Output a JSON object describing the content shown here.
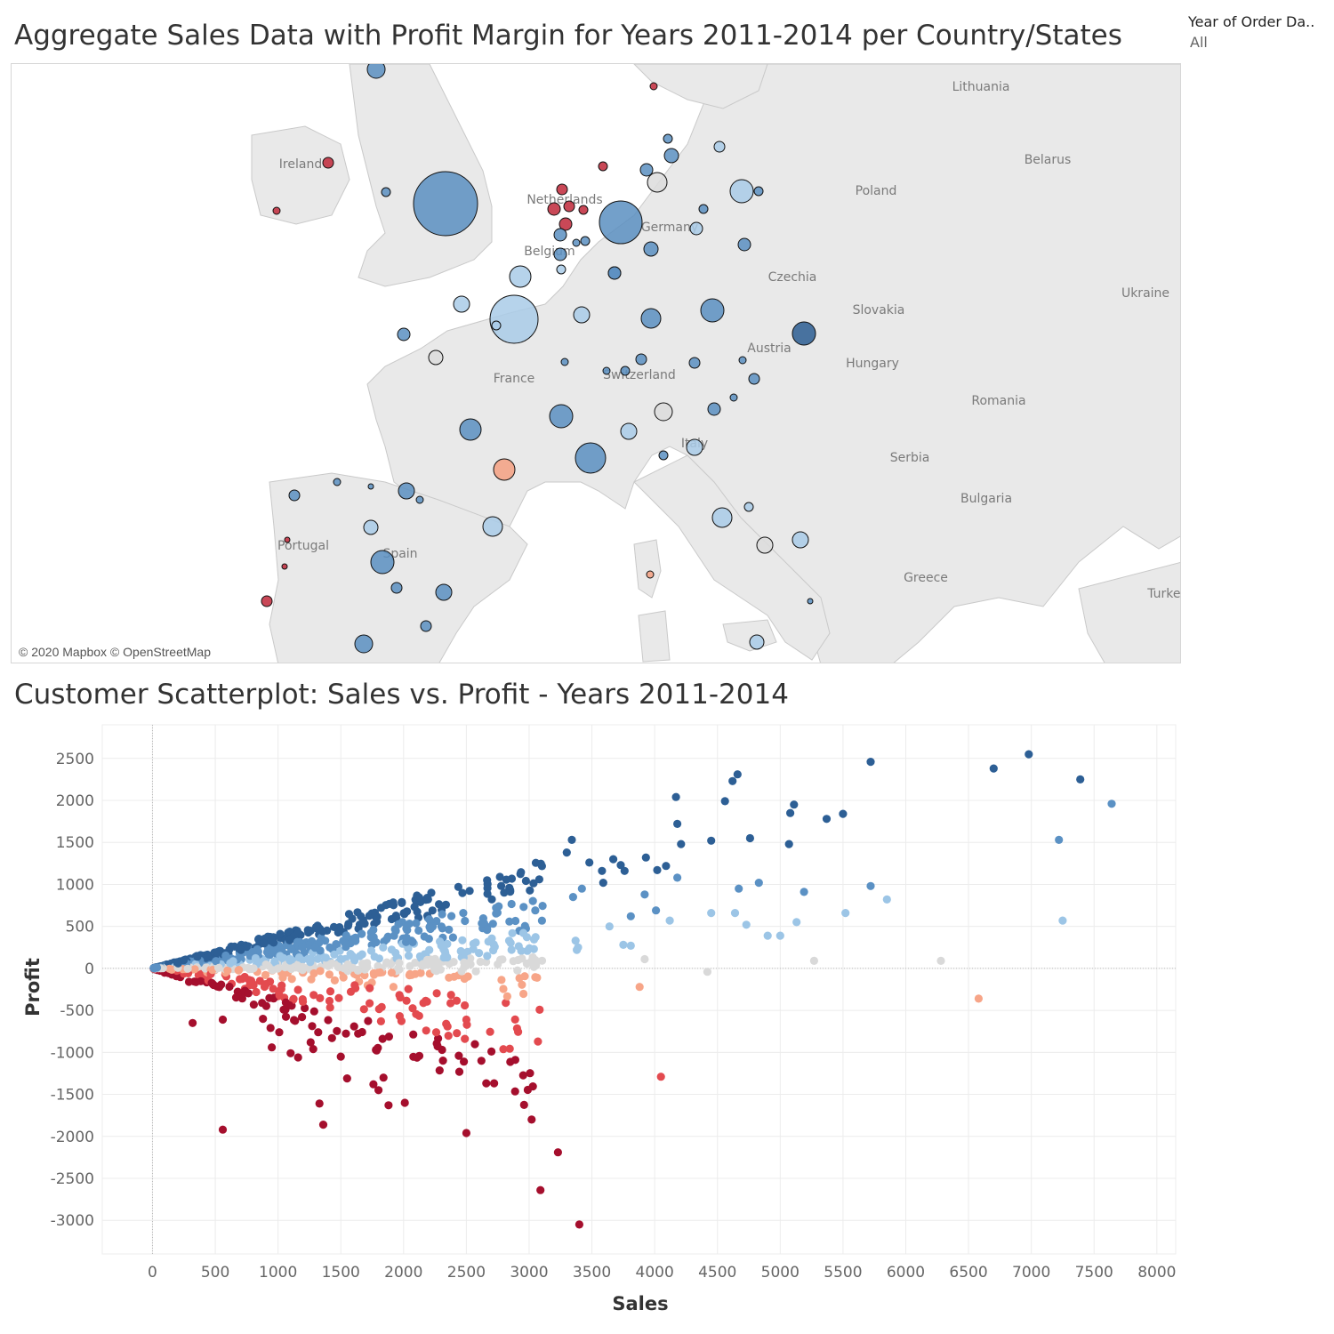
{
  "map": {
    "title": "Aggregate Sales Data with Profit Margin for Years 2011-2014 per Country/States",
    "attribution": "© 2020 Mapbox © OpenStreetMap",
    "labels": [
      "Lithuania",
      "Belarus",
      "Ireland",
      "Poland",
      "Netherlands",
      "Germany",
      "Belgium",
      "Ukraine",
      "Czechia",
      "Slovakia",
      "Austria",
      "Hungary",
      "France",
      "Switzerland",
      "Romania",
      "Italy",
      "Serbia",
      "Bulgaria",
      "Portugal",
      "Spain",
      "Greece",
      "Turkey"
    ],
    "bubble_colors": {
      "strong_positive": "#2b5d92",
      "positive": "#5b8fc1",
      "light_positive": "#a9cbe8",
      "neutral": "#dcdcdc",
      "light_negative": "#f4a081",
      "negative": "#c0283a"
    }
  },
  "filter": {
    "label": "Year of Order Da..",
    "value": "All"
  },
  "chart_data": {
    "type": "scatter",
    "title": "Customer Scatterplot: Sales vs. Profit - Years 2011-2014",
    "xlabel": "Sales",
    "ylabel": "Profit",
    "xlim": [
      -400,
      8150
    ],
    "ylim": [
      -3400,
      2900
    ],
    "x_ticks": [
      0,
      500,
      1000,
      1500,
      2000,
      2500,
      3000,
      3500,
      4000,
      4500,
      5000,
      5500,
      6000,
      6500,
      7000,
      7500,
      8000
    ],
    "y_ticks": [
      2500,
      2000,
      1500,
      1000,
      500,
      0,
      -500,
      -1000,
      -1500,
      -2000,
      -2500,
      -3000
    ],
    "grid": true,
    "color_scale": {
      "most_negative": "#a50f2d",
      "negative": "#e34a4f",
      "light_negative": "#f7a588",
      "neutral": "#d9d9d9",
      "light_positive": "#9cc5e6",
      "positive": "#5b91c4",
      "most_positive": "#2d5f95"
    },
    "points": [
      [
        6980,
        2550
      ],
      [
        5720,
        2460
      ],
      [
        6700,
        2380
      ],
      [
        7390,
        2250
      ],
      [
        4660,
        2310
      ],
      [
        4620,
        2230
      ],
      [
        7640,
        1960
      ],
      [
        4170,
        2040
      ],
      [
        4560,
        1990
      ],
      [
        5110,
        1950
      ],
      [
        5080,
        1850
      ],
      [
        5370,
        1780
      ],
      [
        5500,
        1840
      ],
      [
        4180,
        1720
      ],
      [
        3340,
        1530
      ],
      [
        7220,
        1530
      ],
      [
        4760,
        1550
      ],
      [
        4450,
        1520
      ],
      [
        4210,
        1480
      ],
      [
        5070,
        1480
      ],
      [
        3300,
        1380
      ],
      [
        3480,
        1260
      ],
      [
        3670,
        1300
      ],
      [
        3730,
        1230
      ],
      [
        3930,
        1320
      ],
      [
        3580,
        1160
      ],
      [
        4090,
        1220
      ],
      [
        4020,
        1170
      ],
      [
        3760,
        1160
      ],
      [
        4180,
        1080
      ],
      [
        4830,
        1020
      ],
      [
        3590,
        1020
      ],
      [
        5720,
        980
      ],
      [
        4670,
        950
      ],
      [
        3420,
        950
      ],
      [
        5190,
        910
      ],
      [
        3920,
        880
      ],
      [
        3350,
        850
      ],
      [
        5850,
        820
      ],
      [
        4010,
        690
      ],
      [
        4450,
        660
      ],
      [
        4640,
        660
      ],
      [
        5520,
        660
      ],
      [
        3810,
        620
      ],
      [
        7250,
        570
      ],
      [
        4120,
        570
      ],
      [
        4730,
        520
      ],
      [
        5130,
        550
      ],
      [
        3640,
        500
      ],
      [
        4900,
        390
      ],
      [
        5000,
        390
      ],
      [
        3370,
        330
      ],
      [
        3390,
        250
      ],
      [
        3750,
        280
      ],
      [
        3810,
        270
      ],
      [
        3920,
        110
      ],
      [
        3380,
        220
      ],
      [
        5270,
        90
      ],
      [
        6280,
        90
      ],
      [
        4420,
        -40
      ],
      [
        3880,
        -220
      ],
      [
        6580,
        -360
      ],
      [
        4050,
        -1290
      ],
      [
        3400,
        -3050
      ],
      [
        3090,
        -2640
      ],
      [
        3230,
        -2190
      ],
      [
        3020,
        -1800
      ],
      [
        2500,
        -1960
      ],
      [
        560,
        -1920
      ],
      [
        2010,
        -1600
      ],
      [
        1880,
        -1630
      ],
      [
        1330,
        -1610
      ],
      [
        1360,
        -1860
      ],
      [
        1550,
        -1310
      ],
      [
        1760,
        -1380
      ],
      [
        1840,
        -1300
      ],
      [
        1800,
        -1450
      ],
      [
        2890,
        -1090
      ],
      [
        2480,
        -1110
      ],
      [
        2440,
        -1040
      ],
      [
        2620,
        -1100
      ],
      [
        2700,
        -990
      ],
      [
        1780,
        -970
      ],
      [
        1500,
        -1050
      ],
      [
        1160,
        -1060
      ],
      [
        1280,
        -960
      ],
      [
        1100,
        -1010
      ],
      [
        2180,
        -740
      ],
      [
        2260,
        -760
      ],
      [
        2500,
        -610
      ],
      [
        950,
        -940
      ],
      [
        1260,
        -880
      ],
      [
        1430,
        -830
      ],
      [
        1320,
        -760
      ],
      [
        1010,
        -760
      ],
      [
        940,
        -710
      ],
      [
        880,
        -600
      ],
      [
        320,
        -650
      ],
      [
        560,
        -610
      ],
      [
        1820,
        -630
      ]
    ]
  }
}
